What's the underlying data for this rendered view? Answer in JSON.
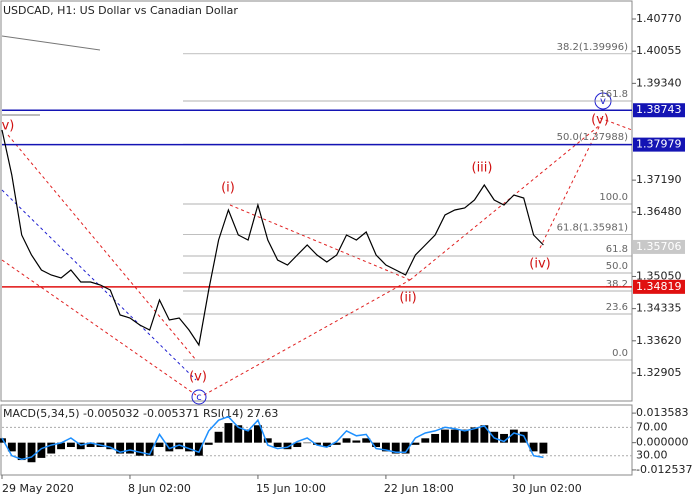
{
  "chart_data": [
    {
      "type": "line",
      "title": "USDCAD, H1:  US Dollar vs Canadian Dollar",
      "color": "#000000",
      "categories": [
        "29 May 2020",
        null,
        null,
        null,
        null,
        null,
        null,
        null,
        null,
        null,
        null,
        null,
        null,
        "8 Jun 02:00",
        null,
        null,
        null,
        null,
        null,
        null,
        null,
        null,
        null,
        null,
        null,
        null,
        "15 Jun 10:00",
        null,
        null,
        null,
        null,
        null,
        null,
        null,
        null,
        null,
        null,
        null,
        null,
        "22 Jun 18:00",
        null,
        null,
        null,
        null,
        null,
        null,
        null,
        null,
        null,
        null,
        null,
        null,
        "30 Jun 02:00",
        null,
        null,
        null,
        null,
        null,
        null,
        null,
        null,
        null,
        null,
        null
      ],
      "values": [
        1.38304,
        1.37304,
        1.35971,
        1.35527,
        1.35193,
        1.35082,
        1.35016,
        1.35193,
        1.34927,
        1.34927,
        1.3486,
        1.34749,
        1.34194,
        1.34127,
        1.33971,
        1.3386,
        1.34527,
        1.34083,
        1.34127,
        1.3386,
        1.33527,
        1.34749,
        1.3586,
        1.36526,
        1.35971,
        1.3586,
        1.36638,
        1.3586,
        1.35416,
        1.35304,
        1.35527,
        1.35749,
        1.35527,
        1.35371,
        1.35527,
        1.35971,
        1.3586,
        1.36038,
        1.35527,
        1.35304,
        1.35193,
        1.35082,
        1.35527,
        1.35749,
        1.35971,
        1.36415,
        1.36526,
        1.36571,
        1.36749,
        1.37082,
        1.36749,
        1.36638,
        1.3686,
        1.36793,
        1.35971,
        1.35749,
        null,
        null,
        null,
        null,
        null,
        null,
        null,
        null
      ],
      "ylim": [
        1.32305,
        1.41192
      ],
      "yticks": [
        {
          "value": 1.4077,
          "label": "1.40770"
        },
        1.40055,
        {
          "value": 1.3934,
          "label": "1.39340"
        },
        {
          "value": 1.3719,
          "label": "1.37190"
        },
        {
          "value": 1.3648,
          "label": "1.36480"
        },
        {
          "value": 1.3505,
          "label": "1.35050"
        },
        1.34335,
        {
          "value": 1.3362,
          "label": "1.33620"
        },
        1.32905
      ],
      "levels": [
        {
          "value": 1.38743,
          "color": "#1414b4"
        },
        {
          "value": 1.37979,
          "color": "#1414b4"
        },
        {
          "value": 1.35706,
          "color": "#c8c8c8"
        },
        {
          "value": 1.34819,
          "color": "#e01010"
        }
      ],
      "fib_levels": [
        {
          "label": "38.2(1.39996)",
          "value": 1.39996
        },
        {
          "label": "161.8",
          "value": 1.38948
        },
        {
          "label": "50.0(1.37988)",
          "value": 1.37988
        },
        {
          "label": "100.0",
          "value": 1.3666
        },
        {
          "label": "61.8(1.35981)",
          "value": 1.35981
        },
        {
          "label": "61.8",
          "value": 1.35504
        },
        {
          "label": "50.0",
          "value": 1.35127
        },
        {
          "label": "38.2",
          "value": 1.34727
        },
        {
          "label": "23.6",
          "value": 1.34216
        },
        {
          "label": "0.0",
          "value": 1.33194
        }
      ],
      "wave_labels": [
        "v)",
        "(i)",
        "(ii)",
        "(iii)",
        "(iv)",
        "(v)",
        "(v)",
        "c",
        "v"
      ]
    },
    {
      "type": "bar",
      "title": "MACD(5,34,5) -0.005032 -0.005371 RSI(14) 27.63",
      "color": "#000000",
      "values": [
        0.002,
        -0.004,
        -0.008,
        -0.009,
        -0.007,
        -0.005,
        -0.003,
        -0.002,
        -0.003,
        -0.002,
        -0.002,
        -0.003,
        -0.005,
        -0.005,
        -0.006,
        -0.006,
        -0.002,
        -0.004,
        -0.003,
        -0.004,
        -0.006,
        -0.001,
        0.005,
        0.009,
        0.008,
        0.006,
        0.008,
        0.002,
        -0.002,
        -0.003,
        -0.002,
        0.0,
        -0.001,
        -0.002,
        -0.001,
        0.002,
        0.001,
        0.002,
        -0.002,
        -0.004,
        -0.005,
        -0.005,
        -0.001,
        0.002,
        0.004,
        0.006,
        0.006,
        0.006,
        0.007,
        0.008,
        0.005,
        0.004,
        0.006,
        0.005,
        -0.004,
        -0.005,
        null,
        null,
        null,
        null,
        null,
        null,
        null,
        null
      ],
      "ylim": [
        -0.014869,
        0.017314
      ],
      "yticks": [
        0.013583,
        {
          "value": 0,
          "label": "0.000000"
        },
        -0.012537
      ],
      "series": [
        {
          "name": "RSI(14)",
          "color": "#1e90ff",
          "axis": "y2",
          "values": [
            55,
            30,
            25,
            28,
            40,
            45,
            48,
            55,
            45,
            48,
            45,
            42,
            35,
            38,
            35,
            32,
            60,
            40,
            45,
            40,
            35,
            65,
            80,
            85,
            70,
            65,
            80,
            45,
            40,
            42,
            50,
            55,
            45,
            42,
            50,
            65,
            58,
            60,
            40,
            38,
            35,
            35,
            55,
            62,
            65,
            70,
            68,
            65,
            68,
            72,
            55,
            50,
            62,
            58,
            30,
            27.63,
            null,
            null,
            null,
            null,
            null,
            null,
            null,
            null
          ]
        }
      ],
      "y2lim": [
        2.86,
        101.43
      ],
      "y2ticks": [
        {
          "value": 70,
          "label": "70.00"
        },
        {
          "value": 30,
          "label": "30.00"
        }
      ]
    }
  ]
}
